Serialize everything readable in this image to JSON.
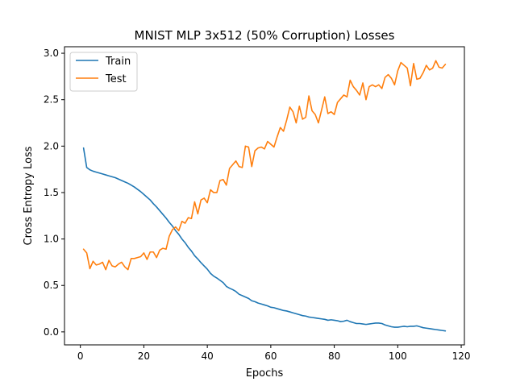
{
  "chart_data": {
    "type": "line",
    "title": "MNIST MLP 3x512 (50% Corruption) Losses",
    "xlabel": "Epochs",
    "ylabel": "Cross Entropy Loss",
    "xlim": [
      -5,
      121
    ],
    "ylim": [
      -0.14,
      3.07
    ],
    "xticks": [
      0,
      20,
      40,
      60,
      80,
      100,
      120
    ],
    "yticks": [
      0.0,
      0.5,
      1.0,
      1.5,
      2.0,
      2.5,
      3.0
    ],
    "ytick_labels": [
      "0.0",
      "0.5",
      "1.0",
      "1.5",
      "2.0",
      "2.5",
      "3.0"
    ],
    "grid": false,
    "legend_position": "top-left",
    "x_start": 1,
    "series": [
      {
        "name": "Train",
        "color": "#1f77b4",
        "values": [
          1.98,
          1.77,
          1.745,
          1.73,
          1.72,
          1.71,
          1.7,
          1.69,
          1.68,
          1.67,
          1.66,
          1.645,
          1.63,
          1.615,
          1.6,
          1.58,
          1.56,
          1.535,
          1.51,
          1.48,
          1.45,
          1.42,
          1.38,
          1.345,
          1.305,
          1.265,
          1.225,
          1.18,
          1.14,
          1.09,
          1.05,
          1.0,
          0.96,
          0.91,
          0.87,
          0.82,
          0.785,
          0.745,
          0.71,
          0.675,
          0.63,
          0.6,
          0.58,
          0.555,
          0.53,
          0.49,
          0.47,
          0.455,
          0.435,
          0.405,
          0.39,
          0.375,
          0.36,
          0.335,
          0.325,
          0.31,
          0.3,
          0.29,
          0.28,
          0.265,
          0.26,
          0.25,
          0.24,
          0.23,
          0.225,
          0.215,
          0.205,
          0.195,
          0.185,
          0.175,
          0.17,
          0.16,
          0.155,
          0.15,
          0.145,
          0.14,
          0.135,
          0.125,
          0.13,
          0.125,
          0.12,
          0.11,
          0.115,
          0.125,
          0.11,
          0.1,
          0.09,
          0.09,
          0.085,
          0.08,
          0.085,
          0.09,
          0.095,
          0.095,
          0.09,
          0.075,
          0.065,
          0.055,
          0.05,
          0.05,
          0.055,
          0.06,
          0.055,
          0.06,
          0.06,
          0.065,
          0.055,
          0.045,
          0.04,
          0.035,
          0.03,
          0.025,
          0.02,
          0.015,
          0.01
        ]
      },
      {
        "name": "Test",
        "color": "#ff7f0e",
        "values": [
          0.89,
          0.85,
          0.68,
          0.76,
          0.72,
          0.73,
          0.75,
          0.67,
          0.77,
          0.71,
          0.7,
          0.73,
          0.75,
          0.7,
          0.67,
          0.79,
          0.79,
          0.8,
          0.81,
          0.85,
          0.78,
          0.86,
          0.86,
          0.8,
          0.88,
          0.9,
          0.89,
          1.03,
          1.1,
          1.13,
          1.09,
          1.19,
          1.17,
          1.23,
          1.22,
          1.4,
          1.27,
          1.42,
          1.44,
          1.39,
          1.53,
          1.5,
          1.5,
          1.63,
          1.64,
          1.58,
          1.76,
          1.8,
          1.84,
          1.78,
          1.77,
          2.0,
          1.99,
          1.78,
          1.95,
          1.98,
          1.99,
          1.97,
          2.05,
          2.02,
          1.99,
          2.1,
          2.2,
          2.16,
          2.28,
          2.42,
          2.37,
          2.25,
          2.43,
          2.29,
          2.31,
          2.54,
          2.38,
          2.34,
          2.25,
          2.39,
          2.53,
          2.35,
          2.37,
          2.34,
          2.47,
          2.51,
          2.55,
          2.53,
          2.71,
          2.64,
          2.6,
          2.55,
          2.68,
          2.5,
          2.64,
          2.66,
          2.64,
          2.66,
          2.62,
          2.74,
          2.77,
          2.73,
          2.66,
          2.81,
          2.9,
          2.87,
          2.84,
          2.65,
          2.89,
          2.72,
          2.73,
          2.79,
          2.87,
          2.82,
          2.84,
          2.92,
          2.85,
          2.84,
          2.88
        ]
      }
    ]
  }
}
